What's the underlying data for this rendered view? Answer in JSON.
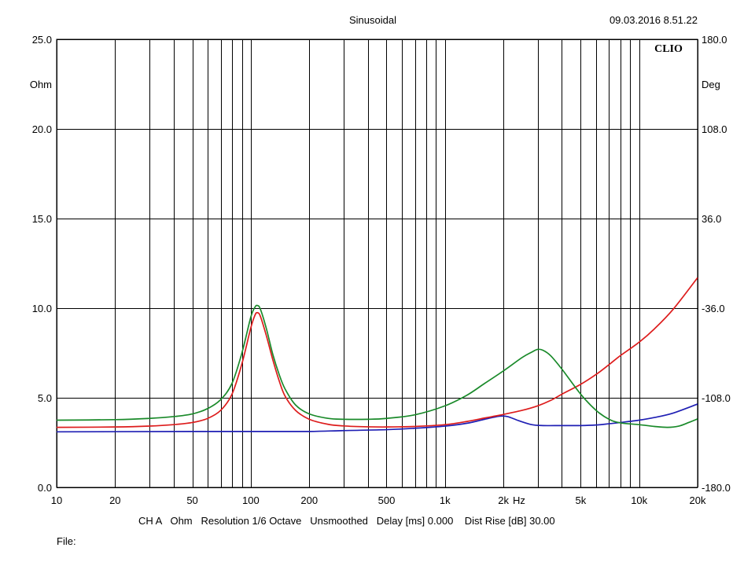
{
  "header": {
    "mode": "Sinusoidal",
    "timestamp": "09.03.2016 8.51.22",
    "logo": "CLIO"
  },
  "footer": {
    "settings": "CH A   Ohm   Resolution 1/6 Octave   Unsmoothed   Delay [ms] 0.000    Dist Rise [dB] 30.00",
    "file_label": "File:"
  },
  "chart_data": {
    "type": "line",
    "xscale": "log",
    "xlim": [
      10,
      20000
    ],
    "x_unit": "Hz",
    "x_ticks": [
      {
        "value": 10,
        "label": "10"
      },
      {
        "value": 20,
        "label": "20"
      },
      {
        "value": 50,
        "label": "50"
      },
      {
        "value": 100,
        "label": "100"
      },
      {
        "value": 200,
        "label": "200"
      },
      {
        "value": 500,
        "label": "500"
      },
      {
        "value": 1000,
        "label": "1k"
      },
      {
        "value": 2000,
        "label": "2k"
      },
      {
        "value": 5000,
        "label": "5k"
      },
      {
        "value": 10000,
        "label": "10k"
      },
      {
        "value": 20000,
        "label": "20k"
      }
    ],
    "y_left": {
      "unit": "Ohm",
      "lim": [
        0,
        25
      ],
      "ticks": [
        {
          "value": 0,
          "label": "0.0"
        },
        {
          "value": 5,
          "label": "5.0"
        },
        {
          "value": 10,
          "label": "10.0"
        },
        {
          "value": 15,
          "label": "15.0"
        },
        {
          "value": 20,
          "label": "20.0"
        },
        {
          "value": 25,
          "label": "25.0"
        }
      ]
    },
    "y_right": {
      "unit": "Deg",
      "lim": [
        -180,
        180
      ],
      "ticks": [
        {
          "value": -180,
          "label": "-180.0"
        },
        {
          "value": -108,
          "label": "-108.0"
        },
        {
          "value": -36,
          "label": "-36.0"
        },
        {
          "value": 36,
          "label": "36.0"
        },
        {
          "value": 108,
          "label": "108.0"
        },
        {
          "value": 180,
          "label": "180.0"
        }
      ]
    },
    "grid": true,
    "series": [
      {
        "color": "#1f1fb4",
        "points": [
          [
            10,
            3.1
          ],
          [
            50,
            3.12
          ],
          [
            100,
            3.12
          ],
          [
            200,
            3.12
          ],
          [
            300,
            3.17
          ],
          [
            500,
            3.22
          ],
          [
            700,
            3.3
          ],
          [
            1000,
            3.42
          ],
          [
            1300,
            3.58
          ],
          [
            1600,
            3.8
          ],
          [
            1900,
            3.97
          ],
          [
            2100,
            3.95
          ],
          [
            2400,
            3.72
          ],
          [
            2800,
            3.5
          ],
          [
            3200,
            3.45
          ],
          [
            4000,
            3.45
          ],
          [
            5000,
            3.45
          ],
          [
            6000,
            3.48
          ],
          [
            7000,
            3.55
          ],
          [
            8000,
            3.62
          ],
          [
            10000,
            3.75
          ],
          [
            12000,
            3.9
          ],
          [
            15000,
            4.15
          ],
          [
            20000,
            4.65
          ]
        ]
      },
      {
        "color": "#dd1c1c",
        "points": [
          [
            10,
            3.35
          ],
          [
            20,
            3.37
          ],
          [
            30,
            3.42
          ],
          [
            40,
            3.5
          ],
          [
            50,
            3.62
          ],
          [
            60,
            3.85
          ],
          [
            70,
            4.3
          ],
          [
            80,
            5.2
          ],
          [
            90,
            6.9
          ],
          [
            100,
            8.9
          ],
          [
            105,
            9.6
          ],
          [
            108,
            9.75
          ],
          [
            112,
            9.55
          ],
          [
            120,
            8.5
          ],
          [
            130,
            7.1
          ],
          [
            140,
            5.95
          ],
          [
            150,
            5.1
          ],
          [
            170,
            4.3
          ],
          [
            200,
            3.8
          ],
          [
            250,
            3.52
          ],
          [
            300,
            3.43
          ],
          [
            400,
            3.38
          ],
          [
            500,
            3.37
          ],
          [
            700,
            3.4
          ],
          [
            1000,
            3.5
          ],
          [
            1300,
            3.68
          ],
          [
            1600,
            3.87
          ],
          [
            2000,
            4.07
          ],
          [
            2500,
            4.3
          ],
          [
            3000,
            4.55
          ],
          [
            3500,
            4.85
          ],
          [
            4000,
            5.2
          ],
          [
            5000,
            5.75
          ],
          [
            6000,
            6.3
          ],
          [
            7000,
            6.85
          ],
          [
            8000,
            7.35
          ],
          [
            10000,
            8.1
          ],
          [
            12000,
            8.85
          ],
          [
            15000,
            9.95
          ],
          [
            20000,
            11.7
          ]
        ]
      },
      {
        "color": "#1a8a2a",
        "points": [
          [
            10,
            3.75
          ],
          [
            20,
            3.78
          ],
          [
            30,
            3.85
          ],
          [
            40,
            3.95
          ],
          [
            50,
            4.1
          ],
          [
            60,
            4.4
          ],
          [
            70,
            4.9
          ],
          [
            80,
            5.8
          ],
          [
            90,
            7.5
          ],
          [
            100,
            9.5
          ],
          [
            105,
            10.05
          ],
          [
            108,
            10.15
          ],
          [
            112,
            9.95
          ],
          [
            120,
            8.9
          ],
          [
            130,
            7.4
          ],
          [
            140,
            6.3
          ],
          [
            150,
            5.5
          ],
          [
            170,
            4.6
          ],
          [
            200,
            4.1
          ],
          [
            250,
            3.85
          ],
          [
            300,
            3.8
          ],
          [
            400,
            3.8
          ],
          [
            500,
            3.85
          ],
          [
            700,
            4.05
          ],
          [
            1000,
            4.55
          ],
          [
            1300,
            5.15
          ],
          [
            1600,
            5.8
          ],
          [
            2000,
            6.5
          ],
          [
            2500,
            7.25
          ],
          [
            2800,
            7.55
          ],
          [
            3000,
            7.7
          ],
          [
            3200,
            7.65
          ],
          [
            3500,
            7.35
          ],
          [
            4000,
            6.6
          ],
          [
            5000,
            5.2
          ],
          [
            6000,
            4.3
          ],
          [
            7000,
            3.8
          ],
          [
            8000,
            3.6
          ],
          [
            10000,
            3.5
          ],
          [
            12000,
            3.4
          ],
          [
            14000,
            3.35
          ],
          [
            16000,
            3.42
          ],
          [
            18000,
            3.62
          ],
          [
            20000,
            3.82
          ]
        ]
      }
    ]
  }
}
